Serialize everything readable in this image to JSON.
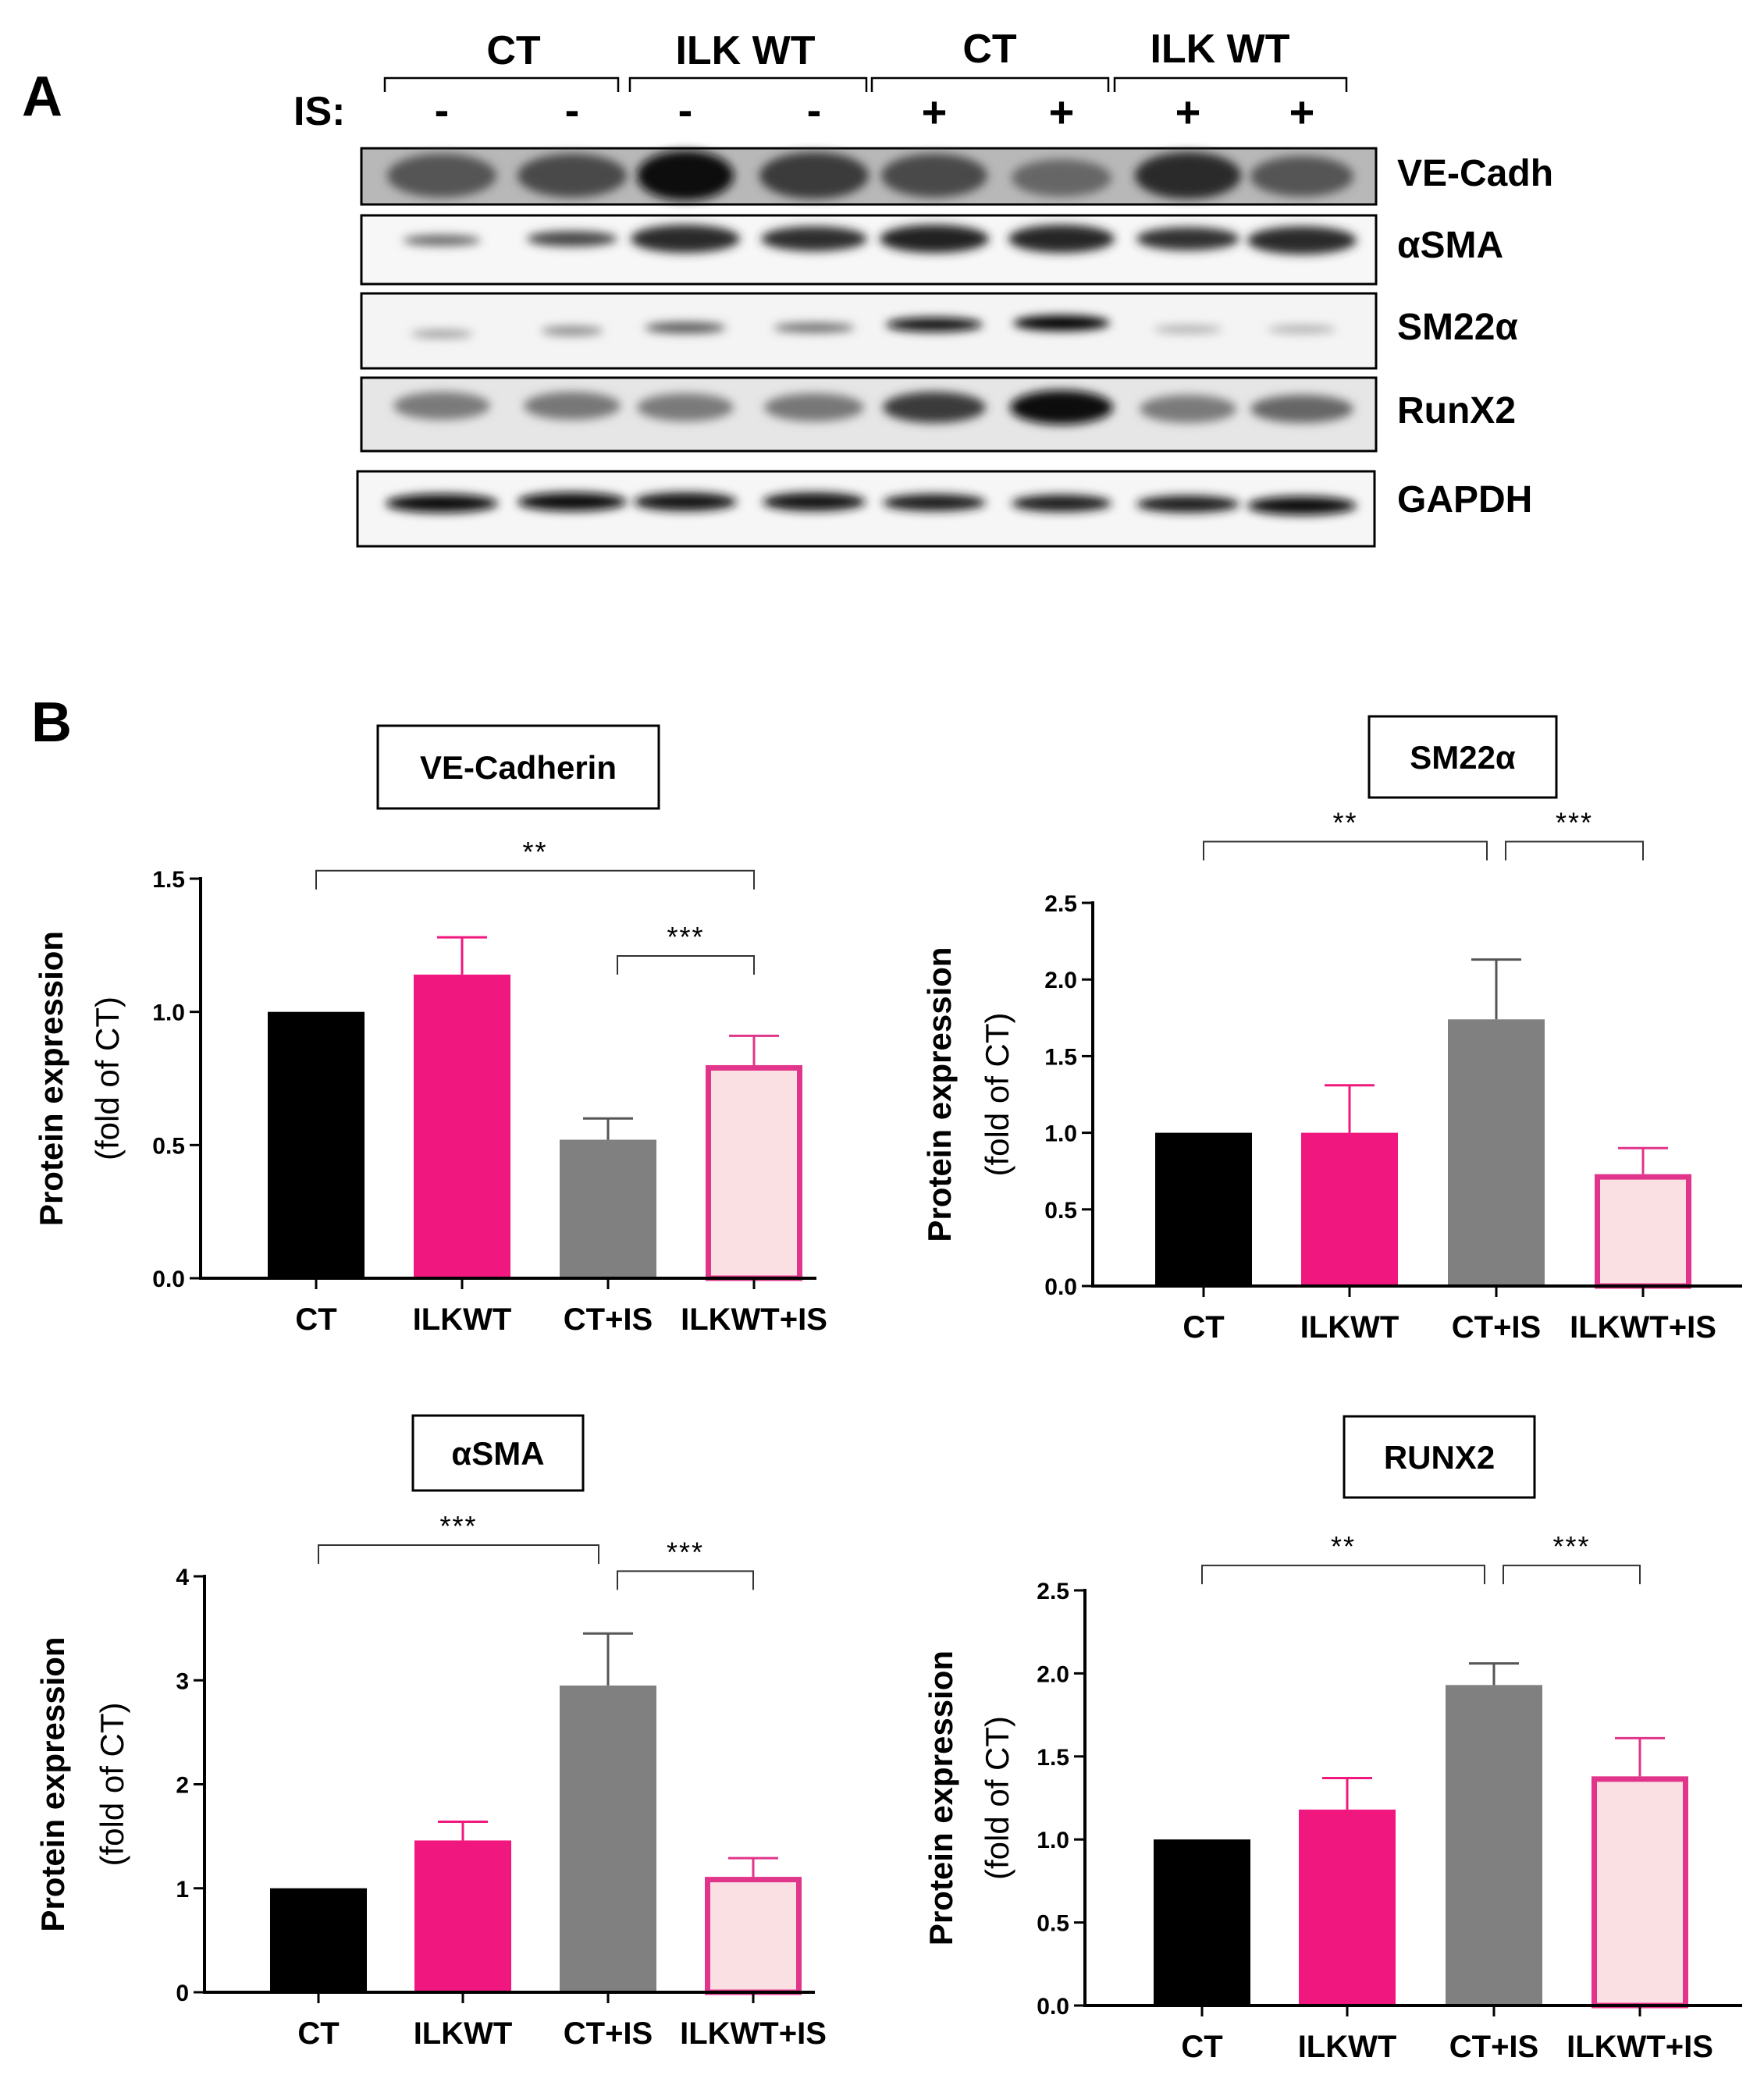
{
  "panel_a": {
    "letter": "A",
    "top_groups": [
      "CT",
      "ILK WT",
      "CT",
      "ILK WT"
    ],
    "is_label": "IS:",
    "is_signs": [
      "-",
      "-",
      "-",
      "-",
      "+",
      "+",
      "+",
      "+"
    ],
    "blots": [
      "VE-Cadh",
      "αSMA",
      "SM22α",
      "RunX2",
      "GAPDH"
    ]
  },
  "panel_b": {
    "letter": "B"
  },
  "colors": {
    "ct": "#000000",
    "ilkwt": "#f0187f",
    "ct_is": "#808080",
    "ilkwt_is_fill": "#fbe0e3",
    "ilkwt_is_edge": "#e0358a"
  },
  "chart_data": [
    {
      "type": "bar",
      "title": "VE-Cadherin",
      "ylabel_line1": "Protein expression",
      "ylabel_line2": "(fold of CT)",
      "categories": [
        "CT",
        "ILKWT",
        "CT+IS",
        "ILKWT+IS"
      ],
      "values": [
        1.0,
        1.14,
        0.52,
        0.8
      ],
      "errors": [
        0,
        0.14,
        0.08,
        0.11
      ],
      "ylim": [
        0,
        1.5
      ],
      "yticks": [
        0,
        0.5,
        1.0,
        1.5
      ],
      "ytick_labels": [
        "0.0",
        "0.5",
        "1.0",
        "1.5"
      ],
      "significance": [
        {
          "from": 0,
          "to": 3,
          "label": "**",
          "y": 1.53
        },
        {
          "from": 2,
          "to": 3,
          "label": "***",
          "y": 1.21
        }
      ]
    },
    {
      "type": "bar",
      "title": "SM22α",
      "ylabel_line1": "Protein expression",
      "ylabel_line2": "(fold of CT)",
      "categories": [
        "CT",
        "ILKWT",
        "CT+IS",
        "ILKWT+IS"
      ],
      "values": [
        1.0,
        1.0,
        1.74,
        0.73
      ],
      "errors": [
        0,
        0.31,
        0.39,
        0.17
      ],
      "ylim": [
        0,
        2.5
      ],
      "yticks": [
        0,
        0.5,
        1.0,
        1.5,
        2.0,
        2.5
      ],
      "ytick_labels": [
        "0.0",
        "0.5",
        "1.0",
        "1.5",
        "2.0",
        "2.5"
      ],
      "significance": [
        {
          "from": 0,
          "to": 2,
          "label": "**",
          "y": 2.9
        },
        {
          "from": 2,
          "to": 3,
          "label": "***",
          "y": 2.9
        }
      ]
    },
    {
      "type": "bar",
      "title": "αSMA",
      "ylabel_line1": "Protein expression",
      "ylabel_line2": "(fold of CT)",
      "categories": [
        "CT",
        "ILKWT",
        "CT+IS",
        "ILKWT+IS"
      ],
      "values": [
        1.0,
        1.46,
        2.95,
        1.11
      ],
      "errors": [
        0,
        0.18,
        0.5,
        0.18
      ],
      "ylim": [
        0,
        4
      ],
      "yticks": [
        0,
        1,
        2,
        3,
        4
      ],
      "ytick_labels": [
        "0",
        "1",
        "2",
        "3",
        "4"
      ],
      "significance": [
        {
          "from": 0,
          "to": 2,
          "label": "***",
          "y": 4.3
        },
        {
          "from": 2,
          "to": 3,
          "label": "***",
          "y": 4.05
        }
      ]
    },
    {
      "type": "bar",
      "title": "RUNX2",
      "ylabel_line1": "Protein expression",
      "ylabel_line2": "(fold of CT)",
      "categories": [
        "CT",
        "ILKWT",
        "CT+IS",
        "ILKWT+IS"
      ],
      "values": [
        1.0,
        1.18,
        1.93,
        1.38
      ],
      "errors": [
        0,
        0.19,
        0.13,
        0.23
      ],
      "ylim": [
        0,
        2.5
      ],
      "yticks": [
        0,
        0.5,
        1.0,
        1.5,
        2.0,
        2.5
      ],
      "ytick_labels": [
        "0.0",
        "0.5",
        "1.0",
        "1.5",
        "2.0",
        "2.5"
      ],
      "significance": [
        {
          "from": 0,
          "to": 2,
          "label": "**",
          "y": 2.65
        },
        {
          "from": 2,
          "to": 3,
          "label": "***",
          "y": 2.65
        }
      ]
    }
  ]
}
